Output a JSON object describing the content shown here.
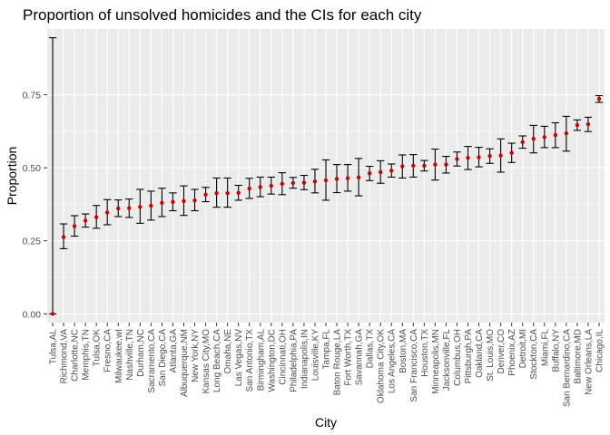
{
  "chart_data": {
    "type": "scatter",
    "title": "Proportion of unsolved homicides and the CIs for each city",
    "xlabel": "City",
    "ylabel": "Proportion",
    "ylim": [
      -0.03,
      0.975
    ],
    "yticks": [
      0.0,
      0.25,
      0.5,
      0.75
    ],
    "ytick_labels": [
      "0.00",
      "0.25",
      "0.50",
      "0.75"
    ],
    "grid": true,
    "panel_background": "#ebebeb",
    "grid_color": "#ffffff",
    "point_color": "#cc0000",
    "errorbar_color": "#000000",
    "categories": [
      "Tulsa,AL",
      "Richmond,VA",
      "Charlotte,NC",
      "Memphis,TN",
      "Tulsa,OK",
      "Fresno,CA",
      "Milwaukee,wI",
      "Nashville,TN",
      "Durham,NC",
      "Sacramento,CA",
      "San Diego,CA",
      "Atlanta,GA",
      "Albuquerque,NM",
      "New York,NY",
      "Kansas City,MO",
      "Long Beach,CA",
      "Omaha,NE",
      "Las Vegas,NV",
      "San Antonio,TX",
      "Birmingham,AL",
      "Washington,DC",
      "Cincinnati,OH",
      "Philadelphia,PA",
      "Indianapolis,IN",
      "Louisville,KY",
      "Tampa,FL",
      "Baton Rouge,LA",
      "Fort Worth,TX",
      "Savannah,GA",
      "Dallas,TX",
      "Oklahoma City,OK",
      "Los Angeles,CA",
      "Boston,MA",
      "San Francisco,CA",
      "Houston,TX",
      "Minneapolis,MN",
      "Jacksonville,FL",
      "Columbus,OH",
      "Pittsburgh,PA",
      "Oakland,CA",
      "St. Louis,MO",
      "Denver,CO",
      "Phoenix,AZ",
      "Detroit,MI",
      "Stockton,CA",
      "Miami,FL",
      "Buffalo,NY",
      "San Bernardino,CA",
      "Baltimore,MD",
      "New Orleans,LA",
      "Chicago,IL"
    ],
    "series": [
      {
        "estimate": [
          0.0,
          0.263,
          0.3,
          0.319,
          0.331,
          0.347,
          0.361,
          0.362,
          0.366,
          0.37,
          0.38,
          0.383,
          0.386,
          0.388,
          0.408,
          0.413,
          0.413,
          0.414,
          0.429,
          0.434,
          0.438,
          0.445,
          0.448,
          0.449,
          0.453,
          0.457,
          0.462,
          0.464,
          0.467,
          0.481,
          0.485,
          0.49,
          0.505,
          0.507,
          0.507,
          0.511,
          0.511,
          0.53,
          0.534,
          0.536,
          0.54,
          0.542,
          0.551,
          0.588,
          0.599,
          0.605,
          0.612,
          0.618,
          0.646,
          0.649,
          0.736
        ],
        "lower": [
          0.0,
          0.223,
          0.266,
          0.297,
          0.293,
          0.305,
          0.333,
          0.33,
          0.31,
          0.321,
          0.333,
          0.353,
          0.337,
          0.353,
          0.384,
          0.365,
          0.365,
          0.389,
          0.395,
          0.401,
          0.41,
          0.408,
          0.43,
          0.425,
          0.414,
          0.389,
          0.415,
          0.42,
          0.404,
          0.456,
          0.447,
          0.468,
          0.465,
          0.468,
          0.489,
          0.458,
          0.482,
          0.506,
          0.494,
          0.503,
          0.515,
          0.485,
          0.518,
          0.567,
          0.551,
          0.569,
          0.569,
          0.557,
          0.628,
          0.624,
          0.724
        ],
        "upper": [
          0.945,
          0.308,
          0.336,
          0.342,
          0.371,
          0.391,
          0.39,
          0.393,
          0.426,
          0.42,
          0.43,
          0.414,
          0.438,
          0.426,
          0.433,
          0.465,
          0.465,
          0.44,
          0.464,
          0.468,
          0.468,
          0.483,
          0.467,
          0.474,
          0.495,
          0.527,
          0.511,
          0.511,
          0.532,
          0.505,
          0.524,
          0.513,
          0.544,
          0.545,
          0.525,
          0.564,
          0.539,
          0.554,
          0.573,
          0.57,
          0.565,
          0.599,
          0.584,
          0.609,
          0.645,
          0.642,
          0.654,
          0.676,
          0.664,
          0.673,
          0.747
        ]
      }
    ]
  }
}
